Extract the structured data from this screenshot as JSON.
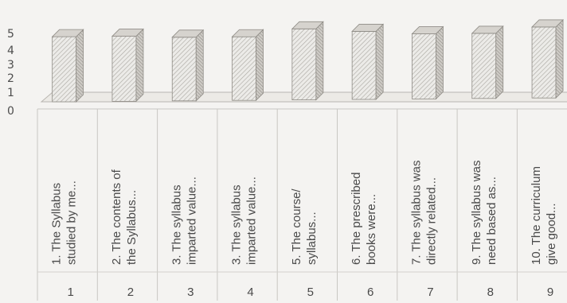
{
  "chart_data": {
    "type": "bar",
    "style": "3d-column",
    "categories": [
      "1",
      "2",
      "3",
      "4",
      "5",
      "6",
      "7",
      "8",
      "9"
    ],
    "category_labels": [
      [
        "1. The Syllabus",
        "studied by me..."
      ],
      [
        "2. The contents of",
        "the Syllabus..."
      ],
      [
        "3. The syllabus",
        "imparted value..."
      ],
      [
        "3. The syllabus",
        "imparted value..."
      ],
      [
        "5. The course/",
        "syllabus..."
      ],
      [
        "6. The prescribed",
        "books were..."
      ],
      [
        "7. The syllabus was",
        "directly related..."
      ],
      [
        "9. The syllabus was",
        "need based as..."
      ],
      [
        "10. The curriculum",
        "give good..."
      ]
    ],
    "values": [
      4.4,
      4.4,
      4.3,
      4.3,
      4.8,
      4.6,
      4.4,
      4.4,
      4.8
    ],
    "yticks": [
      "0",
      "1",
      "2",
      "3",
      "4",
      "5"
    ],
    "ylim": [
      0,
      5
    ],
    "grid": false,
    "legend": "none",
    "colors": {
      "bar": "#e9e7e3",
      "bar_pattern": "#a9a6a0",
      "bar_side": "#bdbab4",
      "bar_top": "#d6d3ce",
      "outline": "#8f8c86",
      "floor": "#b9b6b1"
    }
  }
}
